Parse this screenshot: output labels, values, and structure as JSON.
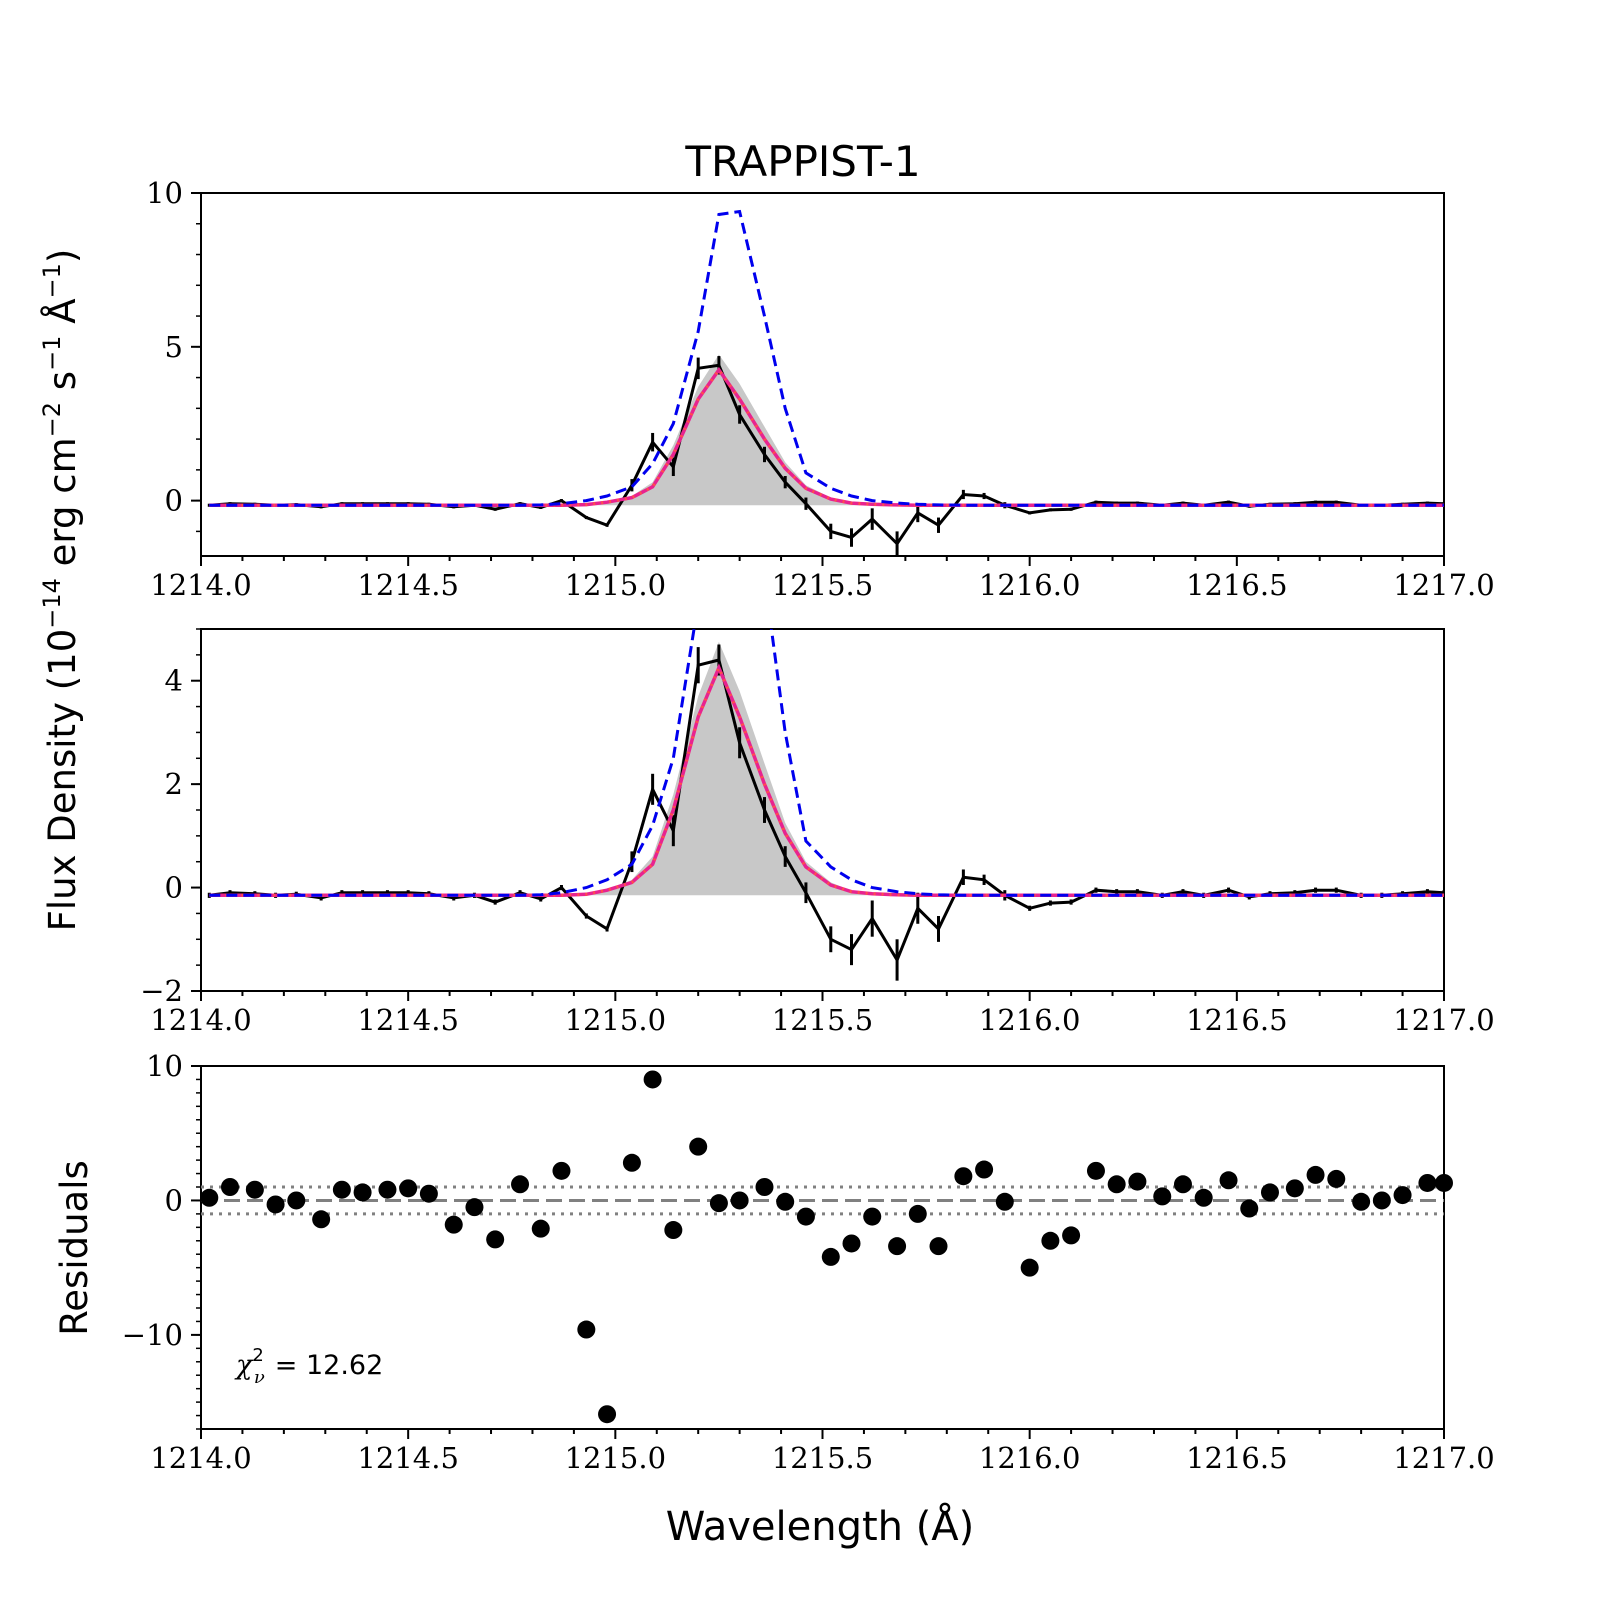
{
  "title": "TRAPPIST-1",
  "ylabel_flux": "Flux Density (10",
  "ylabel_flux_exp": "−14",
  "ylabel_flux_units": " erg cm",
  "ylabel_flux_units_exp1": "−2",
  "ylabel_flux_units2": " s",
  "ylabel_flux_units_exp2": "−1",
  "ylabel_flux_units3": " Å",
  "ylabel_flux_units_exp3": "−1",
  "ylabel_flux_close": ")",
  "ylabel_resid": "Residuals",
  "xlabel": "Wavelength (Å)",
  "chi2_label": "χ",
  "chi2_sup": "2",
  "chi2_sub": "ν",
  "chi2_value": "= 12.62",
  "colors": {
    "data": "#000000",
    "intrinsic": "#0000ee",
    "model": "#e8238f",
    "model_dotted": "#ff4d4d",
    "band": "#c8c8c8",
    "zero_line": "#808080"
  },
  "chart_data": [
    {
      "type": "line",
      "panel": "top",
      "xlim": [
        1214.0,
        1217.0
      ],
      "ylim": [
        -1.8,
        10
      ],
      "xticks": [
        "1214.0",
        "1214.5",
        "1215.0",
        "1215.5",
        "1216.0",
        "1216.5",
        "1217.0"
      ],
      "yticks": [
        "0",
        "5",
        "10"
      ],
      "ytick_values": [
        0,
        5,
        10
      ]
    },
    {
      "type": "line",
      "panel": "middle",
      "xlim": [
        1214.0,
        1217.0
      ],
      "ylim": [
        -2,
        5
      ],
      "xticks": [
        "1214.0",
        "1214.5",
        "1215.0",
        "1215.5",
        "1216.0",
        "1216.5",
        "1217.0"
      ],
      "yticks": [
        "−2",
        "0",
        "2",
        "4"
      ],
      "ytick_values": [
        -2,
        0,
        2,
        4
      ]
    },
    {
      "type": "scatter",
      "panel": "bottom",
      "xlim": [
        1214.0,
        1217.0
      ],
      "ylim": [
        -17,
        10
      ],
      "xticks": [
        "1214.0",
        "1214.5",
        "1215.0",
        "1215.5",
        "1216.0",
        "1216.5",
        "1217.0"
      ],
      "yticks": [
        "−10",
        "0",
        "10"
      ],
      "ytick_values": [
        -10,
        0,
        10
      ],
      "reference_lines": [
        0,
        1,
        -1
      ]
    }
  ],
  "series": {
    "x": [
      1214.02,
      1214.07,
      1214.13,
      1214.18,
      1214.23,
      1214.29,
      1214.34,
      1214.39,
      1214.45,
      1214.5,
      1214.55,
      1214.61,
      1214.66,
      1214.71,
      1214.77,
      1214.82,
      1214.87,
      1214.93,
      1214.98,
      1215.04,
      1215.09,
      1215.14,
      1215.2,
      1215.25,
      1215.3,
      1215.36,
      1215.41,
      1215.46,
      1215.52,
      1215.57,
      1215.62,
      1215.68,
      1215.73,
      1215.78,
      1215.84,
      1215.89,
      1215.94,
      1216.0,
      1216.05,
      1216.1,
      1216.16,
      1216.21,
      1216.26,
      1216.32,
      1216.37,
      1216.42,
      1216.48,
      1216.53,
      1216.58,
      1216.64,
      1216.69,
      1216.74,
      1216.8,
      1216.85,
      1216.9,
      1216.96,
      1217.0
    ],
    "data": [
      -0.15,
      -0.1,
      -0.12,
      -0.15,
      -0.13,
      -0.2,
      -0.1,
      -0.1,
      -0.1,
      -0.1,
      -0.12,
      -0.2,
      -0.15,
      -0.28,
      -0.1,
      -0.22,
      0.0,
      -0.55,
      -0.8,
      0.5,
      1.9,
      1.1,
      4.3,
      4.4,
      2.8,
      1.5,
      0.6,
      -0.1,
      -1.0,
      -1.2,
      -0.6,
      -1.4,
      -0.4,
      -0.8,
      0.2,
      0.15,
      -0.15,
      -0.4,
      -0.3,
      -0.28,
      -0.05,
      -0.08,
      -0.08,
      -0.15,
      -0.08,
      -0.15,
      -0.05,
      -0.18,
      -0.12,
      -0.1,
      -0.05,
      -0.05,
      -0.15,
      -0.15,
      -0.12,
      -0.08,
      -0.1
    ],
    "data_err": [
      0.05,
      0.05,
      0.05,
      0.05,
      0.05,
      0.05,
      0.05,
      0.05,
      0.05,
      0.05,
      0.05,
      0.05,
      0.05,
      0.05,
      0.05,
      0.05,
      0.05,
      0.05,
      0.05,
      0.2,
      0.3,
      0.3,
      0.35,
      0.3,
      0.3,
      0.25,
      0.2,
      0.2,
      0.25,
      0.3,
      0.35,
      0.4,
      0.3,
      0.25,
      0.15,
      0.1,
      0.1,
      0.05,
      0.05,
      0.05,
      0.05,
      0.05,
      0.05,
      0.05,
      0.05,
      0.05,
      0.05,
      0.05,
      0.05,
      0.05,
      0.05,
      0.05,
      0.05,
      0.05,
      0.05,
      0.05,
      0.05
    ],
    "model": [
      -0.15,
      -0.15,
      -0.15,
      -0.15,
      -0.15,
      -0.15,
      -0.15,
      -0.15,
      -0.15,
      -0.15,
      -0.15,
      -0.15,
      -0.15,
      -0.15,
      -0.15,
      -0.15,
      -0.15,
      -0.13,
      -0.05,
      0.1,
      0.45,
      1.5,
      3.3,
      4.25,
      3.3,
      2.0,
      1.05,
      0.4,
      0.05,
      -0.08,
      -0.12,
      -0.14,
      -0.15,
      -0.15,
      -0.15,
      -0.15,
      -0.15,
      -0.15,
      -0.15,
      -0.15,
      -0.15,
      -0.15,
      -0.15,
      -0.15,
      -0.15,
      -0.15,
      -0.15,
      -0.15,
      -0.15,
      -0.15,
      -0.15,
      -0.15,
      -0.15,
      -0.15,
      -0.15,
      -0.15,
      -0.15
    ],
    "band_upper": [
      -0.15,
      -0.15,
      -0.15,
      -0.15,
      -0.15,
      -0.15,
      -0.15,
      -0.15,
      -0.15,
      -0.15,
      -0.15,
      -0.15,
      -0.15,
      -0.15,
      -0.15,
      -0.15,
      -0.15,
      -0.13,
      -0.05,
      0.15,
      0.6,
      1.8,
      3.7,
      4.75,
      3.8,
      2.4,
      1.25,
      0.5,
      0.1,
      -0.06,
      -0.12,
      -0.14,
      -0.15,
      -0.15,
      -0.15,
      -0.15,
      -0.15,
      -0.15,
      -0.15,
      -0.15,
      -0.15,
      -0.15,
      -0.15,
      -0.15,
      -0.15,
      -0.15,
      -0.15,
      -0.15,
      -0.15,
      -0.15,
      -0.15,
      -0.15,
      -0.15,
      -0.15,
      -0.15,
      -0.15,
      -0.15
    ],
    "intrinsic": [
      -0.15,
      -0.15,
      -0.15,
      -0.15,
      -0.15,
      -0.15,
      -0.15,
      -0.15,
      -0.15,
      -0.15,
      -0.15,
      -0.15,
      -0.15,
      -0.15,
      -0.15,
      -0.14,
      -0.1,
      0.0,
      0.15,
      0.45,
      1.2,
      2.5,
      5.5,
      9.3,
      9.4,
      6.0,
      3.0,
      0.9,
      0.4,
      0.15,
      0.0,
      -0.08,
      -0.12,
      -0.14,
      -0.15,
      -0.15,
      -0.15,
      -0.15,
      -0.15,
      -0.15,
      -0.15,
      -0.15,
      -0.15,
      -0.15,
      -0.15,
      -0.15,
      -0.15,
      -0.15,
      -0.15,
      -0.15,
      -0.15,
      -0.15,
      -0.15,
      -0.15,
      -0.15,
      -0.15,
      -0.15
    ],
    "residuals": [
      0.2,
      1.0,
      0.8,
      -0.3,
      0.0,
      -1.4,
      0.8,
      0.6,
      0.8,
      0.9,
      0.5,
      -1.8,
      -0.5,
      -2.9,
      1.2,
      -2.1,
      2.2,
      -9.6,
      -15.9,
      2.8,
      9.0,
      -2.2,
      4.0,
      -0.2,
      0.0,
      1.0,
      -0.1,
      -1.2,
      -4.2,
      -3.2,
      -1.2,
      -3.4,
      -1.0,
      -3.4,
      1.8,
      2.3,
      -0.1,
      -5.0,
      -3.0,
      -2.6,
      2.2,
      1.2,
      1.4,
      0.3,
      1.2,
      0.2,
      1.5,
      -0.6,
      0.6,
      0.9,
      1.9,
      1.6,
      -0.1,
      0.0,
      0.4,
      1.3,
      1.3
    ]
  }
}
